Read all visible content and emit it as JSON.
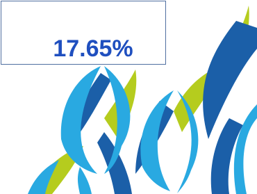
{
  "callout": {
    "text": "17.65%"
  }
}
